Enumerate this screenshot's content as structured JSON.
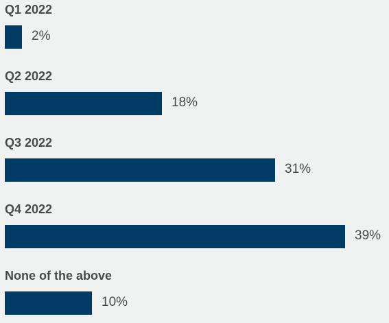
{
  "chart_data": {
    "type": "bar",
    "orientation": "horizontal",
    "categories": [
      "Q1 2022",
      "Q2 2022",
      "Q3 2022",
      "Q4 2022",
      "None of the above"
    ],
    "values": [
      2,
      18,
      31,
      39,
      10
    ],
    "value_labels": [
      "2%",
      "18%",
      "31%",
      "39%",
      "10%"
    ],
    "unit": "%",
    "bar_color": "#003b66",
    "grid": false,
    "legend": "none"
  }
}
